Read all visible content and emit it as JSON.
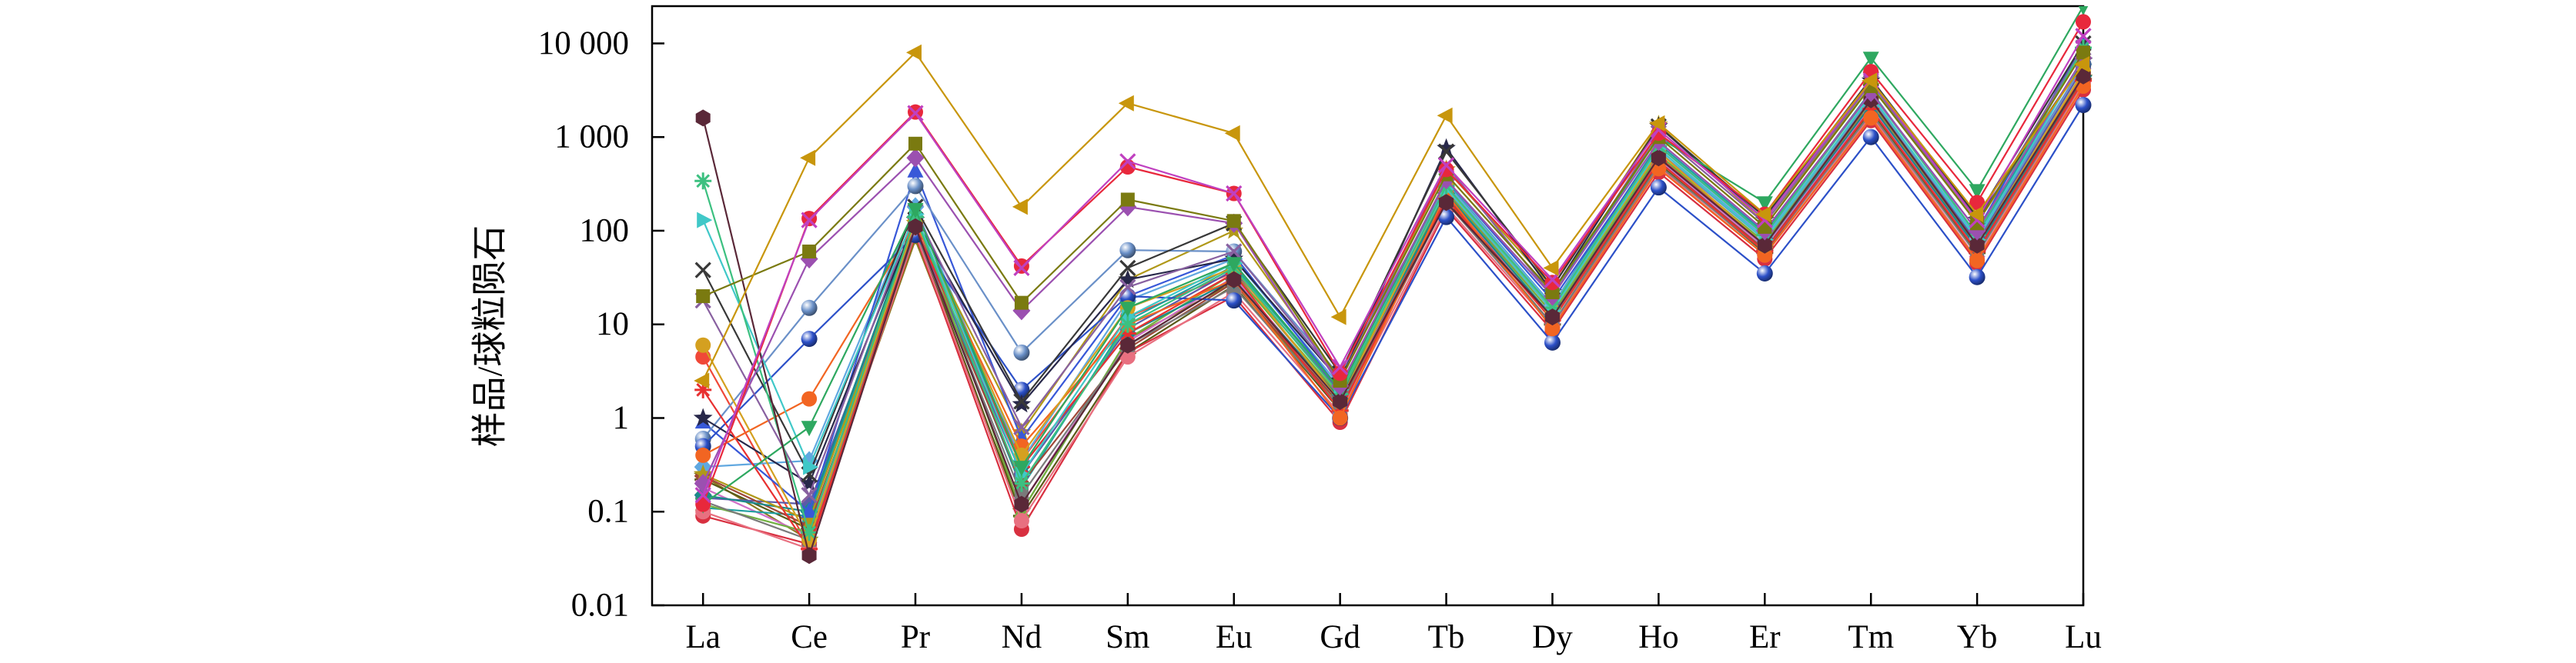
{
  "chart_data": {
    "type": "line",
    "categories": [
      "La",
      "Ce",
      "Pr",
      "Nd",
      "Sm",
      "Eu",
      "Gd",
      "Tb",
      "Dy",
      "Ho",
      "Er",
      "Tm",
      "Yb",
      "Lu"
    ],
    "xlabel": "",
    "ylabel": "样品/球粒陨石",
    "yscale": "log",
    "ylim": [
      0.01,
      25000
    ],
    "y_ticks": [
      0.01,
      0.1,
      1,
      10,
      100,
      1000,
      10000
    ],
    "y_tick_labels": [
      "0.01",
      "0.1",
      "1",
      "10",
      "100",
      "1 000",
      "10 000"
    ],
    "grid": false,
    "legend": "none",
    "series": [
      {
        "marker": "triangle-left",
        "color": "#c8960c",
        "values": [
          2.5,
          600,
          8000,
          180,
          2300,
          1100,
          12,
          1700,
          40,
          1400,
          150,
          4000,
          150,
          6000
        ]
      },
      {
        "marker": "x",
        "color": "#c040c0",
        "values": [
          0.15,
          130,
          1800,
          40,
          550,
          250,
          3.5,
          500,
          30,
          1200,
          130,
          4000,
          130,
          12000
        ]
      },
      {
        "marker": "circle",
        "color": "#e8283c",
        "values": [
          0.12,
          135,
          1850,
          42,
          480,
          250,
          3,
          450,
          28,
          1100,
          150,
          5000,
          200,
          17000
        ]
      },
      {
        "marker": "square",
        "color": "#7a7a10",
        "values": [
          20,
          60,
          850,
          17,
          215,
          127,
          2.5,
          400,
          22,
          1000,
          110,
          3500,
          120,
          8000
        ]
      },
      {
        "marker": "diamond",
        "color": "#9b50b0",
        "values": [
          0.2,
          50,
          600,
          14,
          180,
          120,
          2.2,
          350,
          20,
          900,
          100,
          3000,
          100,
          7000
        ]
      },
      {
        "marker": "hexagon",
        "color": "#5a2838",
        "values": [
          1600,
          0.034,
          110,
          0.12,
          6,
          30,
          1.5,
          200,
          12,
          600,
          70,
          2500,
          70,
          4500
        ]
      },
      {
        "marker": "triangle-down",
        "color": "#2ea860",
        "values": [
          0.12,
          0.8,
          170,
          0.3,
          15,
          45,
          2,
          350,
          20,
          1000,
          200,
          7000,
          270,
          25000
        ]
      },
      {
        "marker": "asterisk",
        "color": "#3cc080",
        "values": [
          340,
          0.06,
          140,
          0.2,
          10,
          40,
          1.8,
          300,
          15,
          800,
          90,
          3000,
          90,
          9000
        ]
      },
      {
        "marker": "triangle-right",
        "color": "#40c8c8",
        "values": [
          130,
          0.3,
          150,
          0.25,
          12,
          45,
          2,
          280,
          14,
          750,
          80,
          2800,
          80,
          7000
        ]
      },
      {
        "marker": "x",
        "color": "#383838",
        "values": [
          38,
          0.25,
          180,
          1.5,
          40,
          120,
          3,
          700,
          25,
          1300,
          140,
          4200,
          140,
          10000
        ]
      },
      {
        "marker": "x",
        "color": "#8860a0",
        "values": [
          18,
          0.15,
          160,
          0.8,
          25,
          60,
          2.5,
          500,
          20,
          1100,
          120,
          3800,
          120,
          9000
        ]
      },
      {
        "marker": "circle",
        "color": "#d4a020",
        "values": [
          6,
          0.05,
          130,
          0.4,
          15,
          40,
          1.5,
          300,
          14,
          700,
          70,
          2500,
          70,
          5000
        ]
      },
      {
        "marker": "circle",
        "color": "#f26522",
        "values": [
          0.4,
          1.6,
          120,
          0.5,
          10,
          30,
          1.0,
          250,
          9,
          460,
          55,
          1600,
          48,
          3500
        ]
      },
      {
        "marker": "asterisk",
        "color": "#e83030",
        "values": [
          2,
          0.04,
          110,
          0.3,
          8,
          35,
          1.2,
          220,
          11,
          550,
          60,
          2000,
          60,
          4000
        ]
      },
      {
        "marker": "star",
        "color": "#28284a",
        "values": [
          1,
          0.2,
          130,
          1.4,
          30,
          50,
          2.5,
          760,
          22,
          1300,
          130,
          4000,
          130,
          6500
        ]
      },
      {
        "marker": "sphere",
        "color": "#2c50c8",
        "values": [
          0.5,
          7,
          90,
          2,
          20,
          18,
          1.0,
          140,
          6.4,
          290,
          35,
          1000,
          32,
          2200
        ]
      },
      {
        "marker": "sphere",
        "color": "#6a90c8",
        "values": [
          0.6,
          15,
          300,
          5,
          62,
          60,
          2.8,
          300,
          15,
          700,
          80,
          2600,
          80,
          6000
        ]
      },
      {
        "marker": "triangle-up",
        "color": "#3858d8",
        "values": [
          0.9,
          0.1,
          430,
          0.6,
          20,
          55,
          2,
          350,
          18,
          800,
          90,
          3000,
          100,
          10000
        ]
      },
      {
        "marker": "star",
        "color": "#b09818",
        "values": [
          0.25,
          0.08,
          120,
          0.7,
          30,
          100,
          2.5,
          450,
          25,
          1350,
          120,
          3500,
          120,
          6500
        ]
      },
      {
        "marker": "diamond",
        "color": "#1a8a8a",
        "values": [
          0.15,
          0.1,
          140,
          0.3,
          8,
          30,
          1.6,
          250,
          12,
          600,
          70,
          2200,
          65,
          4500
        ]
      },
      {
        "marker": "square",
        "color": "#7a7a7a",
        "values": [
          0.13,
          0.05,
          100,
          0.15,
          6,
          25,
          1.3,
          200,
          10,
          500,
          60,
          1800,
          55,
          4000
        ]
      },
      {
        "marker": "diamond",
        "color": "#60a8e0",
        "values": [
          0.3,
          0.35,
          180,
          0.35,
          18,
          50,
          2.2,
          320,
          16,
          750,
          85,
          2700,
          85,
          6000
        ]
      },
      {
        "marker": "circle",
        "color": "#e87080",
        "values": [
          0.1,
          0.04,
          95,
          0.08,
          4.5,
          22,
          1.1,
          180,
          9.5,
          480,
          55,
          1700,
          50,
          3800
        ]
      },
      {
        "marker": "triangle-up",
        "color": "#70b040",
        "values": [
          0.12,
          0.06,
          150,
          0.1,
          7,
          35,
          1.7,
          260,
          13,
          650,
          75,
          2400,
          70,
          5000
        ]
      },
      {
        "marker": "diamond",
        "color": "#a04838",
        "values": [
          0.24,
          0.07,
          100,
          0.2,
          5.5,
          28,
          1.4,
          230,
          11,
          550,
          62,
          2000,
          60,
          4200
        ]
      },
      {
        "marker": "circle",
        "color": "#5a5aa8",
        "values": [
          0.14,
          0.12,
          110,
          0.25,
          9,
          38,
          1.9,
          290,
          14,
          700,
          80,
          2600,
          75,
          5500
        ]
      },
      {
        "marker": "circle",
        "color": "#d83040",
        "values": [
          0.09,
          0.045,
          90,
          0.065,
          5,
          20,
          0.9,
          170,
          8.5,
          420,
          50,
          1500,
          45,
          3200
        ]
      },
      {
        "marker": "square",
        "color": "#20a0a0",
        "values": [
          0.11,
          0.09,
          130,
          0.18,
          11,
          42,
          2,
          330,
          16,
          850,
          95,
          3100,
          90,
          7000
        ]
      },
      {
        "marker": "x",
        "color": "#d070c8",
        "values": [
          0.18,
          0.055,
          115,
          0.12,
          6.5,
          32,
          1.5,
          240,
          12,
          580,
          66,
          2100,
          62,
          4600
        ]
      },
      {
        "marker": "plus",
        "color": "#5a5a18",
        "values": [
          0.22,
          0.065,
          105,
          0.09,
          5,
          26,
          1.2,
          210,
          10,
          520,
          58,
          1900,
          58,
          4100
        ]
      },
      {
        "marker": "circle",
        "color": "#f04838",
        "values": [
          4.5,
          0.042,
          100,
          0.35,
          12,
          36,
          1.6,
          270,
          13,
          620,
          72,
          2300,
          68,
          4800
        ]
      },
      {
        "marker": "star",
        "color": "#8a7a20",
        "values": [
          0.24,
          0.05,
          80,
          0.1,
          7,
          28,
          1.3,
          240,
          12,
          560,
          64,
          2050,
          60,
          4300
        ]
      }
    ]
  }
}
